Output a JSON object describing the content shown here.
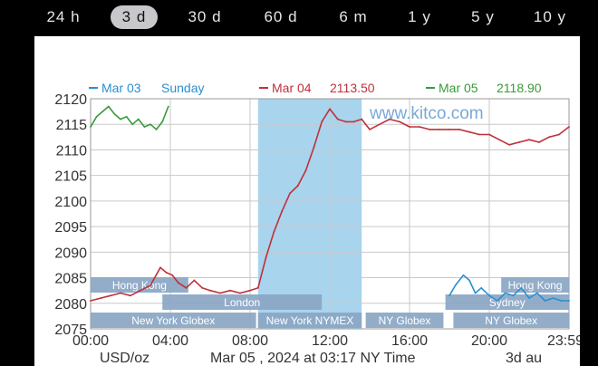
{
  "tabs": [
    {
      "label": "24 h",
      "active": false
    },
    {
      "label": "3 d",
      "active": true
    },
    {
      "label": "30 d",
      "active": false
    },
    {
      "label": "60 d",
      "active": false
    },
    {
      "label": "6 m",
      "active": false
    },
    {
      "label": "1 y",
      "active": false
    },
    {
      "label": "5 y",
      "active": false
    },
    {
      "label": "10 y",
      "active": false
    }
  ],
  "chart_data": {
    "type": "line",
    "ylim": [
      2075,
      2120
    ],
    "yticks": [
      2120,
      2115,
      2110,
      2105,
      2100,
      2095,
      2090,
      2085,
      2080,
      2075
    ],
    "xlim": [
      0,
      24
    ],
    "xticks": [
      {
        "v": 0,
        "label": "00:00"
      },
      {
        "v": 4,
        "label": "04:00"
      },
      {
        "v": 8,
        "label": "08:00"
      },
      {
        "v": 12,
        "label": "12:00"
      },
      {
        "v": 16,
        "label": "16:00"
      },
      {
        "v": 20,
        "label": "20:00"
      },
      {
        "v": 24,
        "label": "23:59"
      }
    ],
    "xlabel_left": "USD/oz",
    "xlabel_center": "Mar 05 , 2024 at 03:17 NY Time",
    "xlabel_right": "3d au",
    "watermark": "www.kitco.com",
    "legend": [
      {
        "date": "Mar 03",
        "value": "Sunday",
        "color": "#2a8fd0"
      },
      {
        "date": "Mar 04",
        "value": "2113.50",
        "color": "#c0303a"
      },
      {
        "date": "Mar 05",
        "value": "2118.90",
        "color": "#3a9a3a"
      }
    ],
    "highlight": {
      "from": 8.4,
      "to": 13.6,
      "color": "#a8d4ee"
    },
    "sessions_top": [
      {
        "label": "Hong Kong",
        "from": 0,
        "to": 4.9
      },
      {
        "label": "Hong Kong",
        "from": 20.6,
        "to": 24
      }
    ],
    "sessions_mid": [
      {
        "label": "London",
        "from": 3.6,
        "to": 11.6
      },
      {
        "label": "Sydney",
        "from": 17.8,
        "to": 24
      }
    ],
    "sessions_bottom": [
      {
        "label": "New York Globex",
        "from": 0,
        "to": 8.3
      },
      {
        "label": "New York NYMEX",
        "from": 8.4,
        "to": 13.6
      },
      {
        "label": "NY Globex",
        "from": 13.8,
        "to": 17.7
      },
      {
        "label": "NY Globex",
        "from": 18.2,
        "to": 24
      }
    ],
    "series": [
      {
        "name": "Mar 03",
        "color": "#2a8fd0",
        "x": [
          18.0,
          18.3,
          18.7,
          19.0,
          19.3,
          19.6,
          20.0,
          20.4,
          20.8,
          21.2,
          21.6,
          22.0,
          22.4,
          22.8,
          23.2,
          23.6,
          24.0
        ],
        "y": [
          2081.5,
          2083.5,
          2085.5,
          2084.5,
          2082.0,
          2083.0,
          2081.5,
          2080.5,
          2082.0,
          2081.5,
          2083.0,
          2081.0,
          2082.0,
          2080.5,
          2081.0,
          2080.5,
          2080.5
        ]
      },
      {
        "name": "Mar 04",
        "color": "#c0303a",
        "x": [
          0.0,
          0.5,
          1.0,
          1.5,
          2.0,
          2.5,
          3.0,
          3.5,
          3.8,
          4.1,
          4.4,
          4.8,
          5.2,
          5.6,
          6.0,
          6.5,
          7.0,
          7.5,
          8.0,
          8.4,
          8.8,
          9.2,
          9.6,
          10.0,
          10.4,
          10.8,
          11.2,
          11.6,
          12.0,
          12.4,
          12.8,
          13.2,
          13.6,
          14.0,
          14.5,
          15.0,
          15.5,
          16.0,
          16.5,
          17.0,
          17.5,
          18.0,
          18.5,
          19.0,
          19.5,
          20.0,
          20.5,
          21.0,
          21.5,
          22.0,
          22.5,
          23.0,
          23.5,
          24.0
        ],
        "y": [
          2080.5,
          2081.0,
          2081.5,
          2082.0,
          2081.5,
          2082.5,
          2083.5,
          2087.0,
          2086.0,
          2085.5,
          2084.0,
          2083.0,
          2084.5,
          2083.0,
          2082.5,
          2082.0,
          2082.5,
          2082.0,
          2082.5,
          2083.0,
          2089.0,
          2094.0,
          2098.0,
          2101.5,
          2103.0,
          2106.0,
          2110.5,
          2115.5,
          2118.0,
          2116.0,
          2115.5,
          2115.5,
          2116.0,
          2114.0,
          2115.0,
          2116.0,
          2115.5,
          2114.5,
          2114.5,
          2114.0,
          2114.0,
          2114.0,
          2114.0,
          2113.5,
          2113.0,
          2113.0,
          2112.0,
          2111.0,
          2111.5,
          2112.0,
          2111.5,
          2112.5,
          2113.0,
          2114.5
        ]
      },
      {
        "name": "Mar 05",
        "color": "#3a9a3a",
        "x": [
          0.0,
          0.3,
          0.6,
          0.9,
          1.2,
          1.5,
          1.8,
          2.1,
          2.4,
          2.7,
          3.0,
          3.3,
          3.6,
          3.9
        ],
        "y": [
          2114.5,
          2116.5,
          2117.5,
          2118.5,
          2117.0,
          2116.0,
          2116.5,
          2115.0,
          2116.0,
          2114.5,
          2115.0,
          2114.0,
          2115.5,
          2118.5
        ]
      }
    ]
  }
}
